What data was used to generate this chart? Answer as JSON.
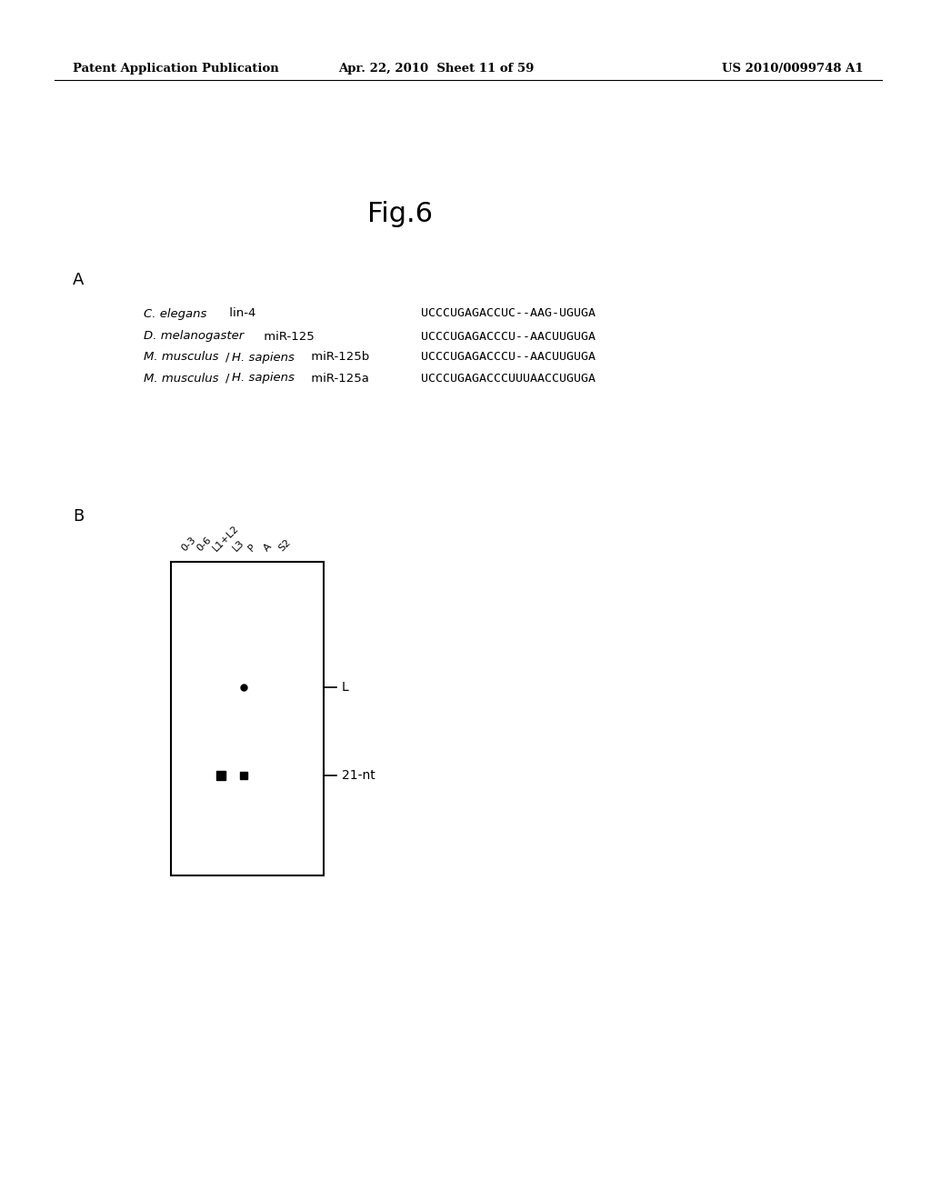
{
  "header_left": "Patent Application Publication",
  "header_mid": "Apr. 22, 2010  Sheet 11 of 59",
  "header_right": "US 2010/0099748 A1",
  "fig_title": "Fig.6",
  "section_A_label": "A",
  "section_B_label": "B",
  "sequences": [
    "UCCCUGAGACCUC--AAG-UGUGA",
    "UCCCUGAGACCCU--AACUUGUGA",
    "UCCCUGAGACCCU--AACUUGUGA",
    "UCCCUGAGACCCUUUAACCUGUGA"
  ],
  "lane_labels": [
    "0-3",
    "0-6",
    "L1+L2",
    "L3",
    "P",
    "A",
    "S2"
  ],
  "background_color": "#ffffff"
}
